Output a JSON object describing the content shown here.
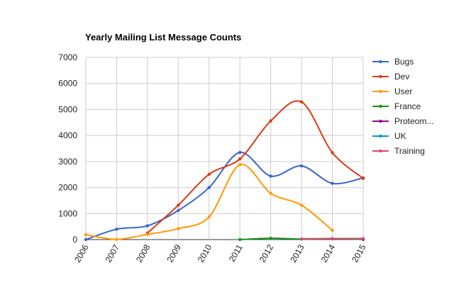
{
  "chart_data": {
    "type": "line",
    "title": "Yearly Mailing List Message Counts",
    "xlabel": "",
    "ylabel": "",
    "x": [
      "2006",
      "2007",
      "2008",
      "2009",
      "2010",
      "2011",
      "2012",
      "2013",
      "2014",
      "2015"
    ],
    "ylim": [
      0,
      7000
    ],
    "yticks": [
      0,
      1000,
      2000,
      3000,
      4000,
      5000,
      6000,
      7000
    ],
    "grid": true,
    "legend_position": "right",
    "smooth": true,
    "series": [
      {
        "name": "Bugs",
        "color": "#3366cc",
        "values": [
          0,
          400,
          530,
          1120,
          2000,
          3350,
          2440,
          2830,
          2160,
          2370
        ]
      },
      {
        "name": "Dev",
        "color": "#dc3912",
        "values": [
          null,
          null,
          250,
          1320,
          2510,
          3100,
          4560,
          5290,
          3340,
          2350
        ]
      },
      {
        "name": "User",
        "color": "#ff9900",
        "values": [
          190,
          10,
          200,
          420,
          870,
          2880,
          1780,
          1320,
          360,
          null
        ]
      },
      {
        "name": "France",
        "color": "#109618",
        "values": [
          null,
          null,
          null,
          null,
          null,
          0,
          50,
          20,
          30,
          10
        ]
      },
      {
        "name": "Proteom...",
        "color": "#990099",
        "values": [
          null,
          null,
          null,
          null,
          null,
          null,
          null,
          null,
          null,
          5
        ]
      },
      {
        "name": "UK",
        "color": "#0099c6",
        "values": [
          null,
          null,
          null,
          null,
          null,
          null,
          null,
          null,
          null,
          null
        ]
      },
      {
        "name": "Training",
        "color": "#dd4477",
        "values": [
          null,
          null,
          null,
          null,
          null,
          null,
          null,
          30,
          40,
          40
        ]
      }
    ]
  }
}
